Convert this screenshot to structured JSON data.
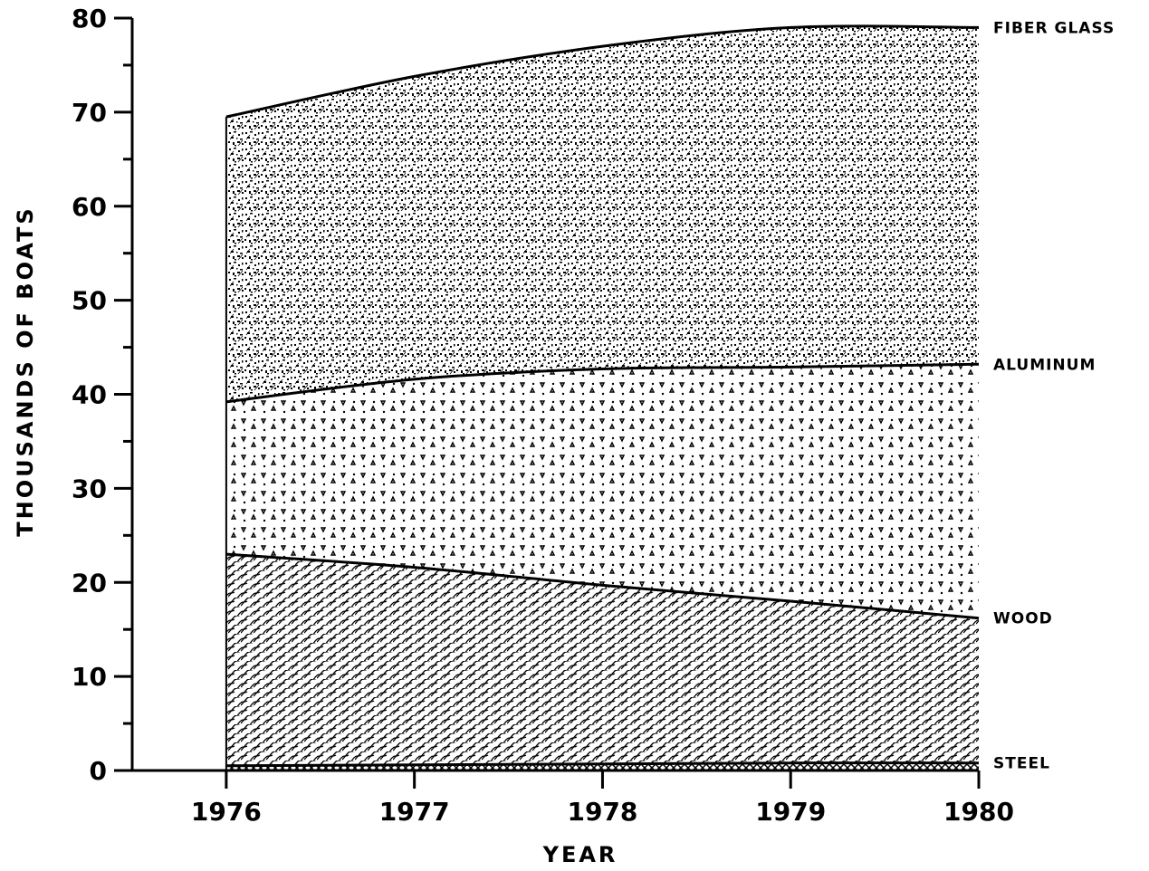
{
  "chart_data": {
    "type": "area",
    "stacked": true,
    "xlabel": "YEAR",
    "ylabel": "THOUSANDS OF BOATS",
    "x": [
      1976,
      1977,
      1978,
      1979,
      1980
    ],
    "xlim": [
      1975.5,
      1980
    ],
    "ylim": [
      0,
      80
    ],
    "yticks": [
      0,
      10,
      20,
      30,
      40,
      50,
      60,
      70,
      80
    ],
    "xticks": [
      1976,
      1977,
      1978,
      1979,
      1980
    ],
    "grid": false,
    "legend": "direct labels at right end of each band",
    "series": [
      {
        "name": "STEEL",
        "values": [
          0.5,
          0.6,
          0.7,
          0.8,
          0.8
        ],
        "cumulative": [
          0.5,
          0.6,
          0.7,
          0.8,
          0.8
        ],
        "pattern": "crosshatch"
      },
      {
        "name": "WOOD",
        "values": [
          22.5,
          21.0,
          19.0,
          17.2,
          15.4
        ],
        "cumulative": [
          23.0,
          21.6,
          19.7,
          18.0,
          16.2
        ],
        "pattern": "wavy-lines"
      },
      {
        "name": "ALUMINUM",
        "values": [
          16.2,
          20.0,
          23.0,
          24.9,
          27.0
        ],
        "cumulative": [
          39.2,
          41.6,
          42.7,
          42.9,
          43.2
        ],
        "pattern": "triangle-dots"
      },
      {
        "name": "FIBER GLASS",
        "values": [
          30.3,
          32.2,
          34.3,
          36.1,
          35.8
        ],
        "cumulative": [
          69.5,
          73.8,
          77.0,
          79.0,
          79.0
        ],
        "pattern": "dense-speckle"
      }
    ],
    "colors": {
      "ink": "#000000",
      "paper": "#ffffff"
    }
  }
}
